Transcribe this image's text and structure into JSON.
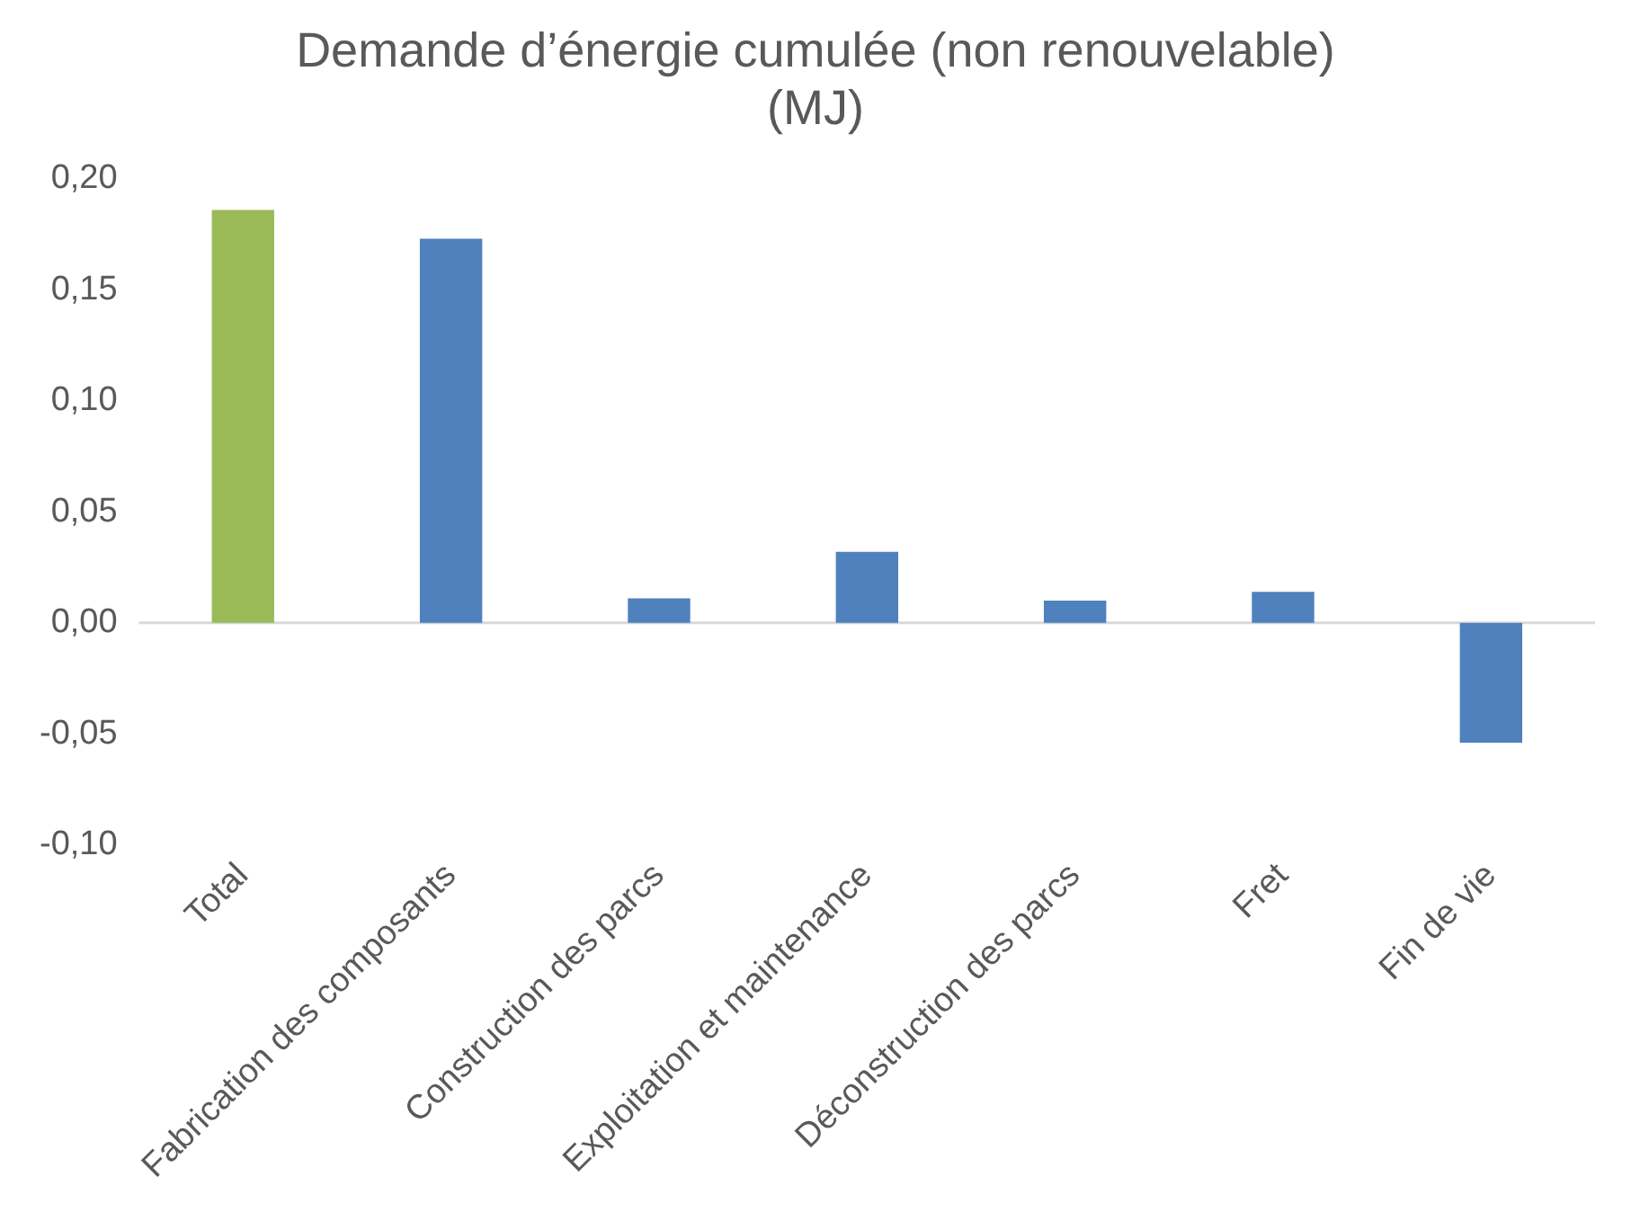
{
  "chart_data": {
    "type": "bar",
    "title": "Demande d’énergie cumulée (non renouvelable) (MJ)",
    "categories": [
      "Total",
      "Fabrication des composants",
      "Construction des parcs",
      "Exploitation et maintenance",
      "Déconstruction des parcs",
      "Fret",
      "Fin de vie"
    ],
    "values": [
      0.186,
      0.173,
      0.011,
      0.032,
      0.01,
      0.014,
      -0.054
    ],
    "colors": [
      "#9bbb59",
      "#4f81bd",
      "#4f81bd",
      "#4f81bd",
      "#4f81bd",
      "#4f81bd",
      "#4f81bd"
    ],
    "ylim": [
      -0.1,
      0.2
    ],
    "yticks": [
      {
        "value": -0.1,
        "label": "-0,10"
      },
      {
        "value": -0.05,
        "label": "-0,05"
      },
      {
        "value": 0,
        "label": "0,00"
      },
      {
        "value": 0.05,
        "label": "0,05"
      },
      {
        "value": 0.1,
        "label": "0,10"
      },
      {
        "value": 0.15,
        "label": "0,15"
      },
      {
        "value": 0.2,
        "label": "0,20"
      }
    ],
    "ref_lines": [
      {
        "axis": "y",
        "value": 0,
        "color": "#d9d9d9"
      }
    ],
    "grid": false,
    "legend": false
  }
}
